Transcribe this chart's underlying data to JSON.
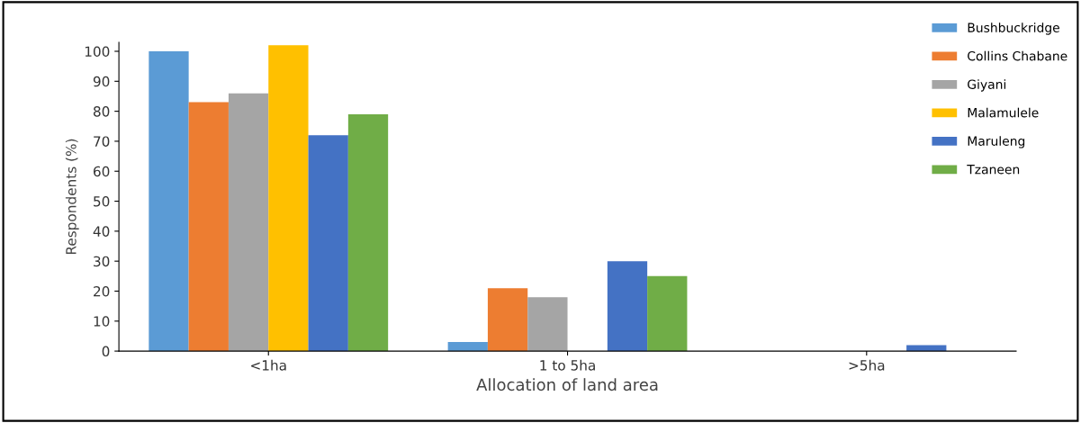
{
  "chart_data": {
    "type": "bar",
    "xlabel": "Allocation of land area",
    "ylabel": "Respondents (%)",
    "categories": [
      "<1ha",
      "1 to 5ha",
      ">5ha"
    ],
    "series": [
      {
        "name": "Bushbuckridge",
        "color": "#5b9bd5",
        "values": [
          100,
          3,
          0
        ]
      },
      {
        "name": "Collins Chabane",
        "color": "#ed7d31",
        "values": [
          83,
          21,
          0
        ]
      },
      {
        "name": "Giyani",
        "color": "#a5a5a5",
        "values": [
          86,
          18,
          0
        ]
      },
      {
        "name": "Malamulele",
        "color": "#ffc000",
        "values": [
          102,
          0,
          0
        ]
      },
      {
        "name": "Maruleng",
        "color": "#4472c4",
        "values": [
          72,
          30,
          2
        ]
      },
      {
        "name": "Tzaneen",
        "color": "#70ad47",
        "values": [
          79,
          25,
          0
        ]
      }
    ],
    "ylim": [
      0,
      103
    ],
    "yticks": [
      0,
      10,
      20,
      30,
      40,
      50,
      60,
      70,
      80,
      90,
      100
    ],
    "grid": false,
    "legend": "top right"
  }
}
